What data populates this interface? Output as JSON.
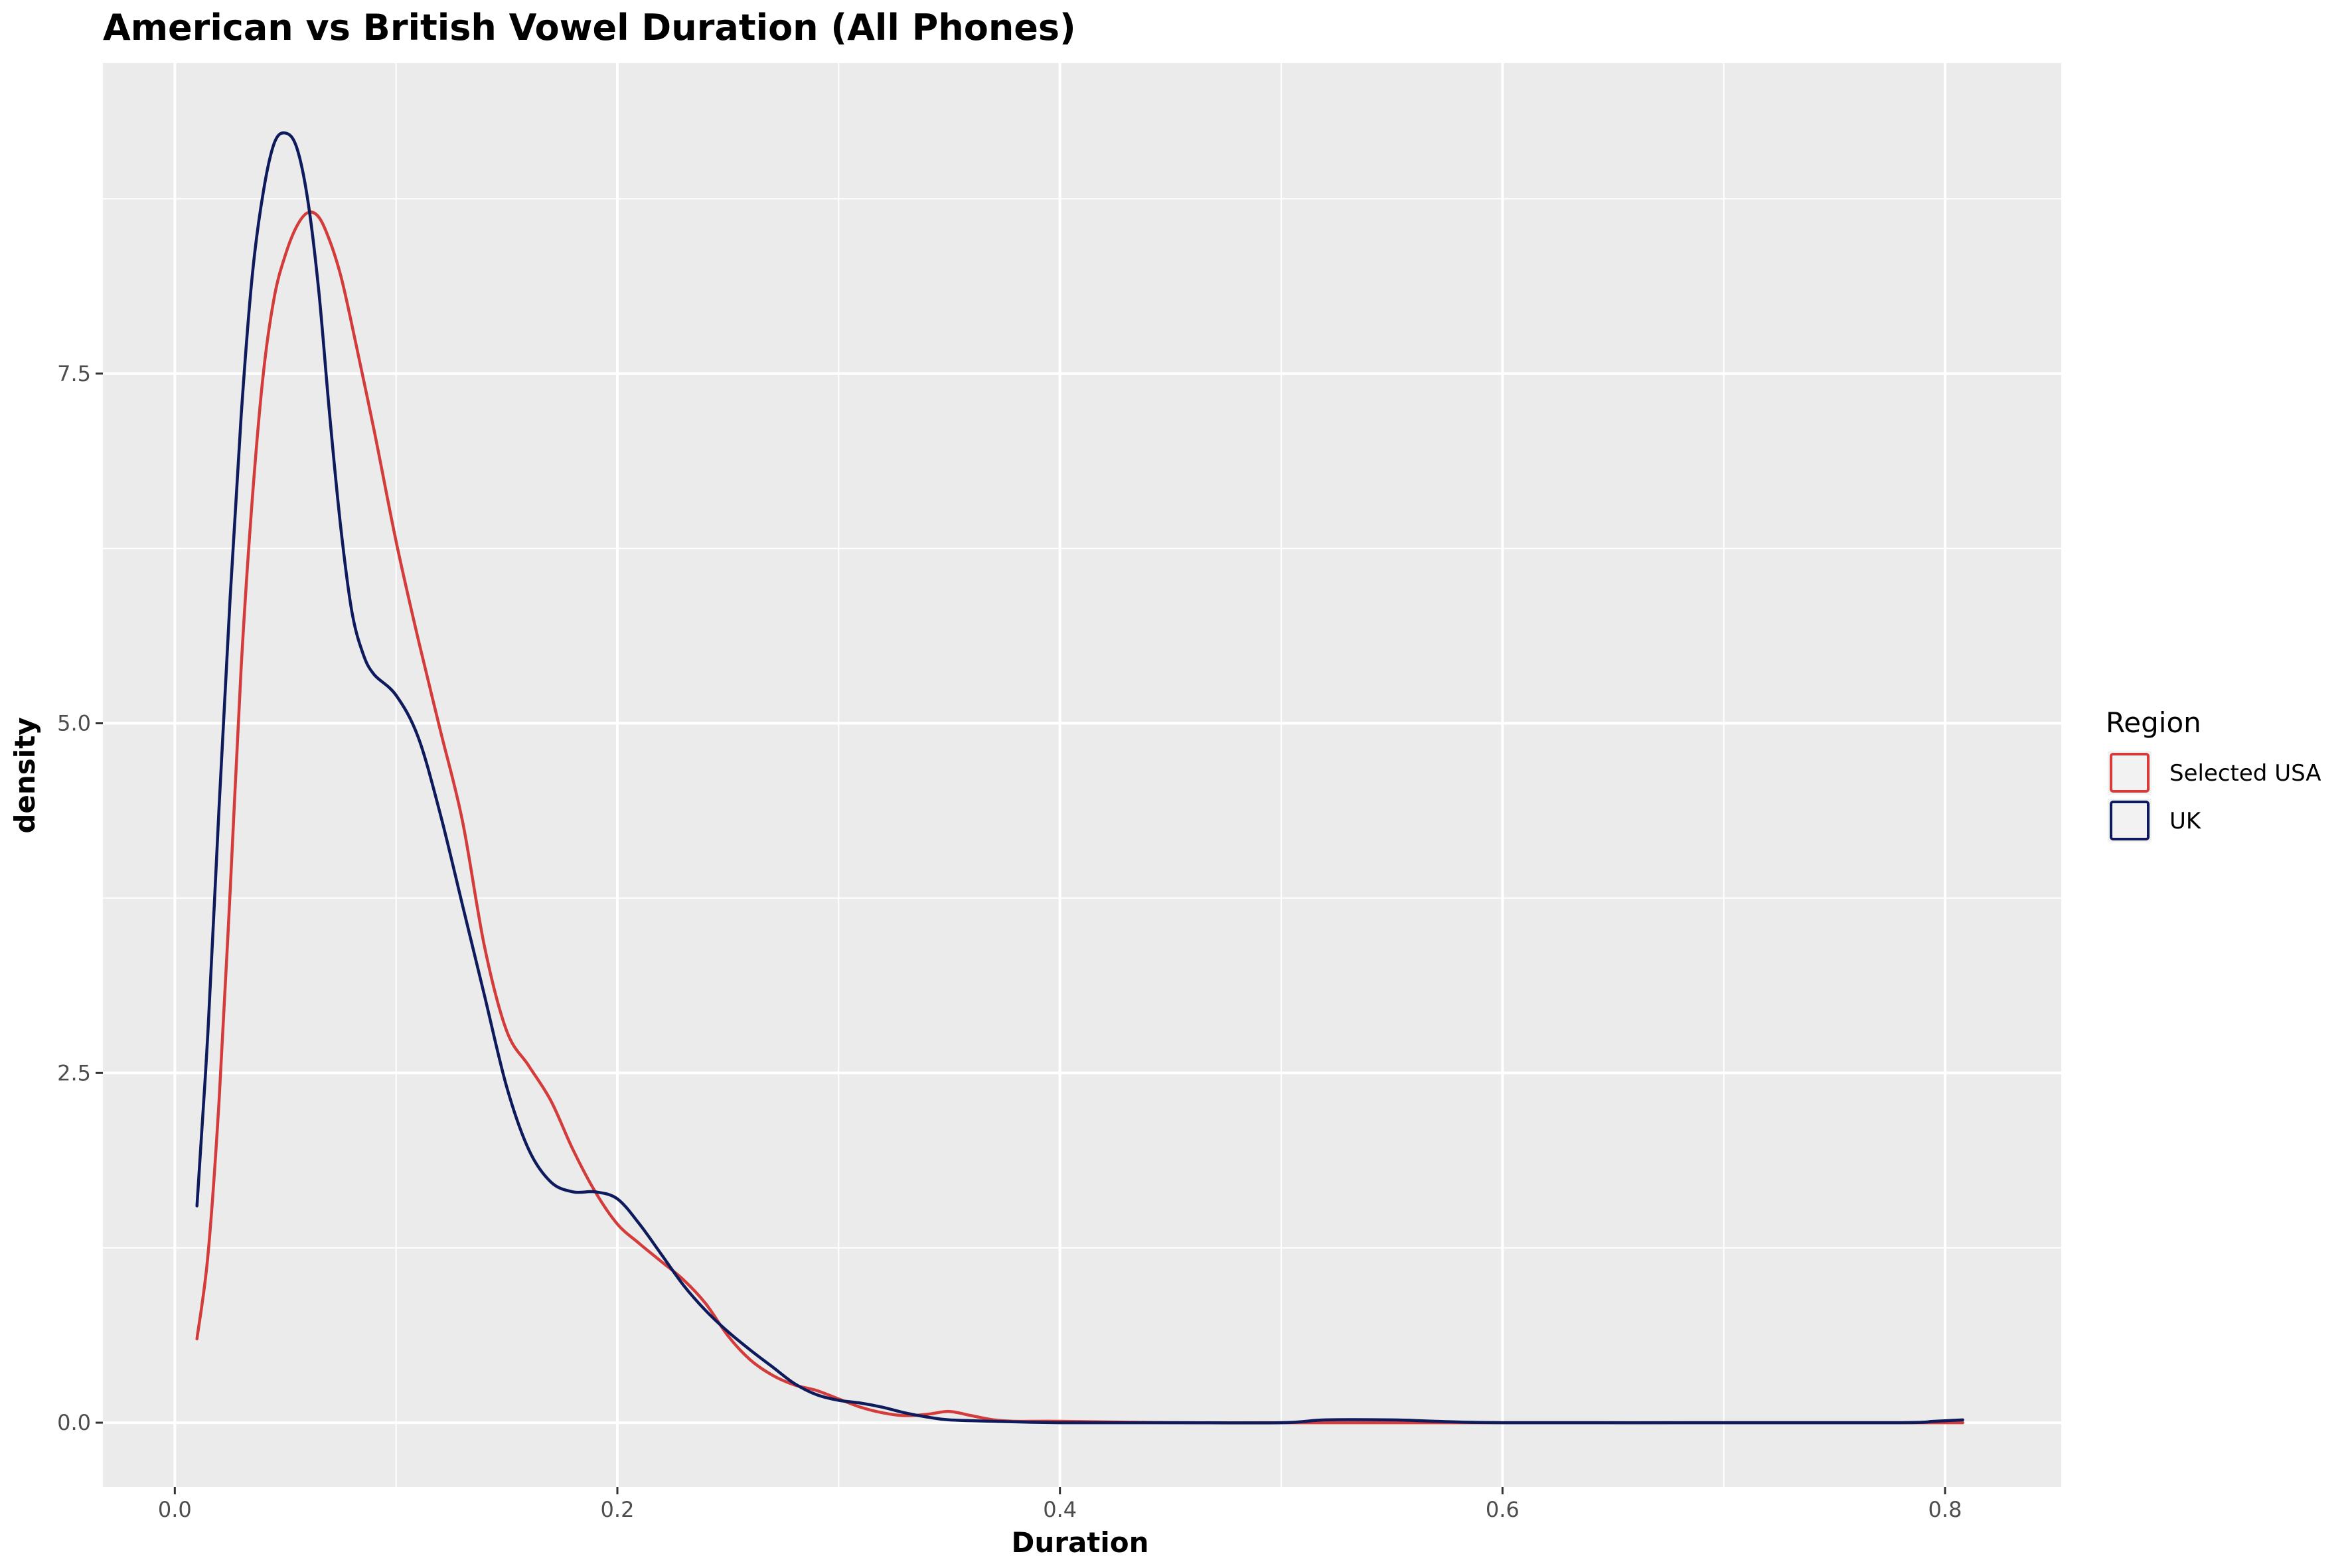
{
  "chart_data": {
    "type": "line",
    "title": "American vs British Vowel Duration (All Phones)",
    "xlabel": "Duration",
    "ylabel": "density",
    "xlim": [
      -0.0325,
      0.8525
    ],
    "ylim": [
      -0.46,
      9.72
    ],
    "x_ticks": [
      0.0,
      0.2,
      0.4,
      0.6,
      0.8
    ],
    "x_tick_labels": [
      "0.0",
      "0.2",
      "0.4",
      "0.6",
      "0.8"
    ],
    "x_minor_ticks": [
      0.1,
      0.3,
      0.5,
      0.7
    ],
    "y_ticks": [
      0.0,
      2.5,
      5.0,
      7.5
    ],
    "y_tick_labels": [
      "0.0",
      "2.5",
      "5.0",
      "7.5"
    ],
    "y_minor_ticks": [
      1.25,
      3.75,
      6.25,
      8.75
    ],
    "grid": true,
    "legend": {
      "title": "Region",
      "position": "right"
    },
    "colors": {
      "panel": "#ebebeb",
      "grid": "#ffffff"
    },
    "series": [
      {
        "name": "Selected USA",
        "color": "#d43c3c",
        "points": [
          [
            0.01,
            0.6
          ],
          [
            0.015,
            1.2
          ],
          [
            0.02,
            2.3
          ],
          [
            0.025,
            3.8
          ],
          [
            0.03,
            5.4
          ],
          [
            0.035,
            6.6
          ],
          [
            0.04,
            7.5
          ],
          [
            0.045,
            8.05
          ],
          [
            0.05,
            8.35
          ],
          [
            0.055,
            8.55
          ],
          [
            0.06,
            8.65
          ],
          [
            0.065,
            8.62
          ],
          [
            0.07,
            8.45
          ],
          [
            0.075,
            8.2
          ],
          [
            0.08,
            7.85
          ],
          [
            0.09,
            7.1
          ],
          [
            0.1,
            6.3
          ],
          [
            0.11,
            5.6
          ],
          [
            0.12,
            4.95
          ],
          [
            0.13,
            4.3
          ],
          [
            0.14,
            3.4
          ],
          [
            0.15,
            2.8
          ],
          [
            0.16,
            2.55
          ],
          [
            0.17,
            2.3
          ],
          [
            0.18,
            1.95
          ],
          [
            0.19,
            1.65
          ],
          [
            0.2,
            1.42
          ],
          [
            0.21,
            1.28
          ],
          [
            0.22,
            1.15
          ],
          [
            0.23,
            1.02
          ],
          [
            0.24,
            0.85
          ],
          [
            0.25,
            0.62
          ],
          [
            0.26,
            0.45
          ],
          [
            0.27,
            0.34
          ],
          [
            0.28,
            0.27
          ],
          [
            0.29,
            0.23
          ],
          [
            0.3,
            0.17
          ],
          [
            0.31,
            0.11
          ],
          [
            0.32,
            0.07
          ],
          [
            0.33,
            0.05
          ],
          [
            0.34,
            0.06
          ],
          [
            0.35,
            0.08
          ],
          [
            0.36,
            0.05
          ],
          [
            0.37,
            0.02
          ],
          [
            0.38,
            0.01
          ],
          [
            0.4,
            0.01
          ],
          [
            0.45,
            0.0
          ],
          [
            0.5,
            0.0
          ],
          [
            0.55,
            0.0
          ],
          [
            0.6,
            0.0
          ],
          [
            0.7,
            0.0
          ],
          [
            0.808,
            0.0
          ]
        ]
      },
      {
        "name": "UK",
        "color": "#0d1b5c",
        "points": [
          [
            0.01,
            1.55
          ],
          [
            0.015,
            2.8
          ],
          [
            0.02,
            4.4
          ],
          [
            0.025,
            5.9
          ],
          [
            0.03,
            7.2
          ],
          [
            0.035,
            8.2
          ],
          [
            0.04,
            8.8
          ],
          [
            0.045,
            9.15
          ],
          [
            0.05,
            9.22
          ],
          [
            0.055,
            9.12
          ],
          [
            0.06,
            8.75
          ],
          [
            0.065,
            8.1
          ],
          [
            0.07,
            7.2
          ],
          [
            0.075,
            6.4
          ],
          [
            0.08,
            5.8
          ],
          [
            0.085,
            5.5
          ],
          [
            0.09,
            5.35
          ],
          [
            0.1,
            5.2
          ],
          [
            0.11,
            4.9
          ],
          [
            0.12,
            4.35
          ],
          [
            0.13,
            3.7
          ],
          [
            0.14,
            3.05
          ],
          [
            0.15,
            2.4
          ],
          [
            0.16,
            1.95
          ],
          [
            0.17,
            1.72
          ],
          [
            0.18,
            1.65
          ],
          [
            0.19,
            1.65
          ],
          [
            0.2,
            1.6
          ],
          [
            0.21,
            1.42
          ],
          [
            0.22,
            1.2
          ],
          [
            0.23,
            0.98
          ],
          [
            0.24,
            0.8
          ],
          [
            0.25,
            0.65
          ],
          [
            0.26,
            0.52
          ],
          [
            0.27,
            0.4
          ],
          [
            0.28,
            0.28
          ],
          [
            0.29,
            0.2
          ],
          [
            0.3,
            0.16
          ],
          [
            0.31,
            0.14
          ],
          [
            0.32,
            0.11
          ],
          [
            0.33,
            0.07
          ],
          [
            0.34,
            0.04
          ],
          [
            0.35,
            0.02
          ],
          [
            0.37,
            0.01
          ],
          [
            0.4,
            0.0
          ],
          [
            0.45,
            0.0
          ],
          [
            0.5,
            0.0
          ],
          [
            0.52,
            0.02
          ],
          [
            0.55,
            0.02
          ],
          [
            0.57,
            0.01
          ],
          [
            0.6,
            0.0
          ],
          [
            0.7,
            0.0
          ],
          [
            0.78,
            0.0
          ],
          [
            0.795,
            0.01
          ],
          [
            0.808,
            0.02
          ]
        ]
      }
    ]
  }
}
